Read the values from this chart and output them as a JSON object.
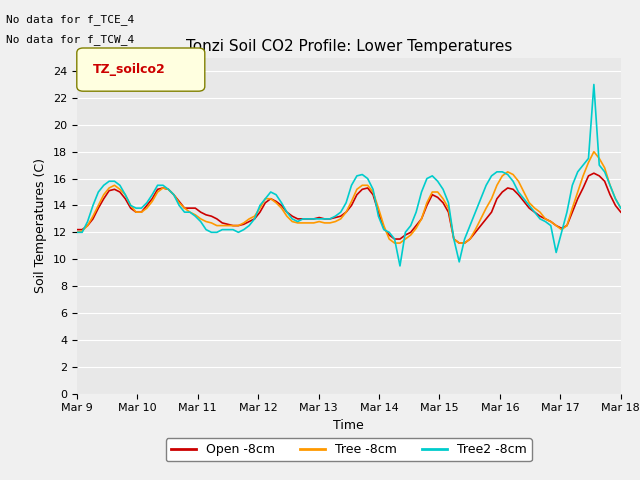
{
  "title": "Tonzi Soil CO2 Profile: Lower Temperatures",
  "xlabel": "Time",
  "ylabel": "Soil Temperatures (C)",
  "annotations": [
    "No data for f_TCE_4",
    "No data for f_TCW_4"
  ],
  "legend_box_label": "TZ_soilco2",
  "legend_labels": [
    "Open -8cm",
    "Tree -8cm",
    "Tree2 -8cm"
  ],
  "legend_colors": [
    "#cc0000",
    "#ff9900",
    "#00cccc"
  ],
  "ylim": [
    0,
    25
  ],
  "yticks": [
    0,
    2,
    4,
    6,
    8,
    10,
    12,
    14,
    16,
    18,
    20,
    22,
    24
  ],
  "xtick_labels": [
    "Mar 9",
    "Mar 10",
    "Mar 11",
    "Mar 12",
    "Mar 13",
    "Mar 14",
    "Mar 15",
    "Mar 16",
    "Mar 17",
    "Mar 18"
  ],
  "background_color": "#e8e8e8",
  "line_colors": [
    "#cc0000",
    "#ff9900",
    "#00cccc"
  ],
  "line_width": 1.2,
  "open_8cm": [
    12.2,
    12.2,
    12.5,
    13.0,
    13.8,
    14.5,
    15.1,
    15.2,
    15.0,
    14.5,
    13.8,
    13.5,
    13.5,
    14.0,
    14.5,
    15.2,
    15.3,
    15.2,
    14.8,
    14.3,
    13.8,
    13.8,
    13.8,
    13.5,
    13.3,
    13.2,
    13.0,
    12.7,
    12.6,
    12.5,
    12.5,
    12.6,
    12.8,
    13.0,
    13.5,
    14.2,
    14.5,
    14.3,
    14.0,
    13.5,
    13.2,
    13.0,
    13.0,
    13.0,
    13.0,
    13.1,
    13.0,
    13.0,
    13.1,
    13.2,
    13.5,
    14.0,
    14.8,
    15.2,
    15.3,
    14.8,
    13.5,
    12.3,
    11.8,
    11.5,
    11.5,
    11.8,
    12.0,
    12.5,
    13.0,
    14.0,
    14.8,
    14.6,
    14.2,
    13.5,
    11.5,
    11.2,
    11.2,
    11.5,
    12.0,
    12.5,
    13.0,
    13.5,
    14.5,
    15.0,
    15.3,
    15.2,
    14.8,
    14.3,
    13.8,
    13.5,
    13.2,
    13.0,
    12.8,
    12.5,
    12.3,
    12.5,
    13.5,
    14.5,
    15.3,
    16.2,
    16.4,
    16.2,
    15.8,
    14.8,
    14.0,
    13.5
  ],
  "tree_8cm": [
    12.0,
    12.1,
    12.5,
    13.2,
    14.0,
    14.8,
    15.3,
    15.5,
    15.2,
    14.8,
    14.0,
    13.5,
    13.5,
    13.8,
    14.3,
    15.0,
    15.3,
    15.2,
    14.8,
    14.2,
    13.8,
    13.5,
    13.3,
    13.0,
    12.8,
    12.7,
    12.5,
    12.5,
    12.5,
    12.5,
    12.5,
    12.7,
    13.0,
    13.2,
    13.8,
    14.5,
    14.5,
    14.2,
    13.8,
    13.2,
    12.8,
    12.7,
    12.7,
    12.7,
    12.7,
    12.8,
    12.7,
    12.7,
    12.8,
    13.0,
    13.5,
    14.3,
    15.2,
    15.5,
    15.5,
    15.0,
    13.8,
    12.5,
    11.5,
    11.2,
    11.2,
    11.5,
    11.8,
    12.3,
    13.0,
    14.2,
    15.0,
    15.0,
    14.5,
    13.8,
    11.5,
    11.2,
    11.2,
    11.5,
    12.2,
    13.0,
    13.8,
    14.5,
    15.5,
    16.2,
    16.5,
    16.3,
    15.8,
    15.0,
    14.2,
    13.8,
    13.5,
    13.0,
    12.8,
    12.5,
    12.2,
    12.5,
    13.8,
    15.0,
    16.2,
    17.2,
    18.0,
    17.5,
    16.8,
    15.5,
    14.5,
    13.8
  ],
  "tree2_8cm": [
    12.0,
    12.0,
    12.8,
    14.0,
    15.0,
    15.5,
    15.8,
    15.8,
    15.5,
    14.8,
    14.0,
    13.8,
    13.8,
    14.2,
    14.8,
    15.5,
    15.5,
    15.2,
    14.8,
    14.0,
    13.5,
    13.5,
    13.2,
    12.8,
    12.2,
    12.0,
    12.0,
    12.2,
    12.2,
    12.2,
    12.0,
    12.2,
    12.5,
    13.0,
    14.0,
    14.5,
    15.0,
    14.8,
    14.2,
    13.5,
    13.0,
    12.8,
    13.0,
    13.0,
    13.0,
    13.0,
    13.0,
    13.0,
    13.2,
    13.5,
    14.2,
    15.5,
    16.2,
    16.3,
    16.0,
    15.2,
    13.2,
    12.2,
    12.0,
    11.5,
    9.5,
    12.0,
    12.5,
    13.5,
    15.0,
    16.0,
    16.2,
    15.8,
    15.2,
    14.2,
    11.5,
    9.8,
    11.5,
    12.5,
    13.5,
    14.5,
    15.5,
    16.2,
    16.5,
    16.5,
    16.3,
    15.8,
    15.0,
    14.5,
    14.0,
    13.5,
    13.0,
    12.8,
    12.5,
    10.5,
    12.0,
    13.5,
    15.5,
    16.5,
    17.0,
    17.5,
    23.0,
    17.0,
    16.5,
    15.5,
    14.5,
    13.8
  ]
}
